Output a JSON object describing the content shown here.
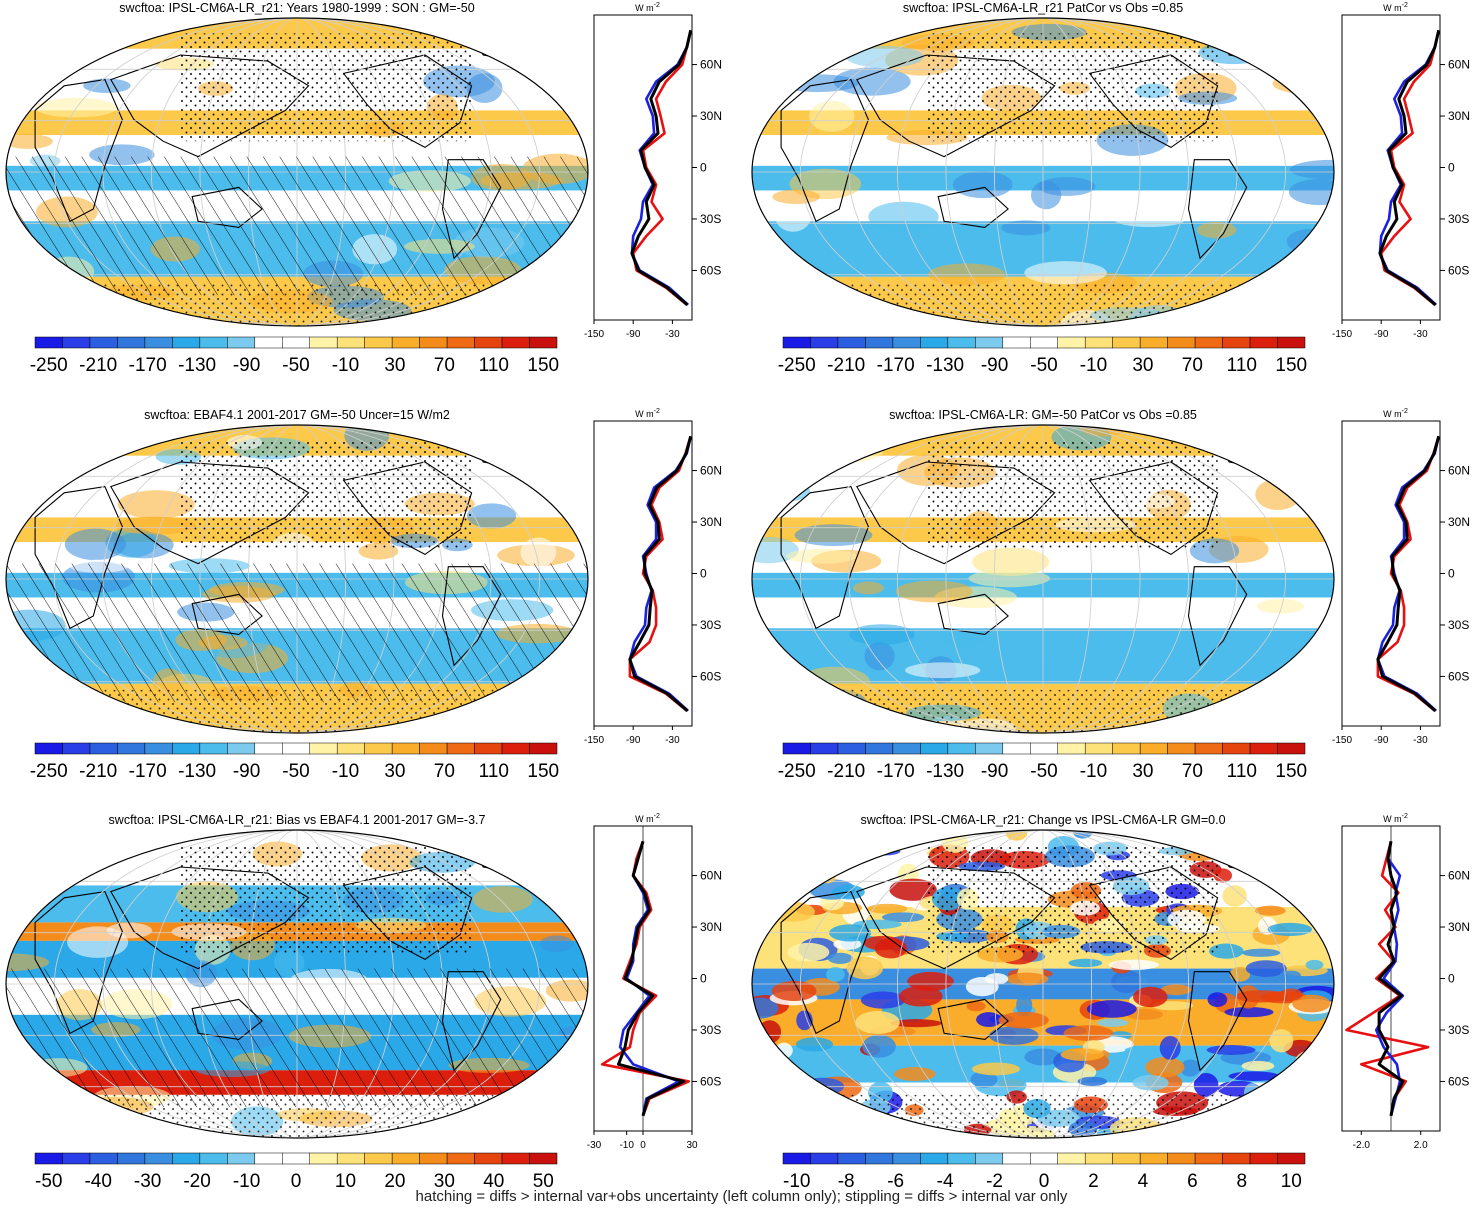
{
  "palettes": {
    "wide": [
      "#1a1ae6",
      "#2a3ee8",
      "#2b5ee0",
      "#3076dc",
      "#3a8ee0",
      "#2aa8e8",
      "#4bbcec",
      "#7ccbee",
      "#ffffff",
      "#ffffff",
      "#fff3a8",
      "#fde27a",
      "#fcc94a",
      "#f9ad2a",
      "#f48c1c",
      "#ee6a14",
      "#e6440f",
      "#dc1f0c",
      "#c8100c"
    ],
    "bias": [
      "#1a1ae6",
      "#2a3ee8",
      "#2b5ee0",
      "#3076dc",
      "#3a8ee0",
      "#2aa8e8",
      "#4bbcec",
      "#7ccbee",
      "#ffffff",
      "#ffffff",
      "#fff3a8",
      "#fde27a",
      "#fcc94a",
      "#f9ad2a",
      "#f48c1c",
      "#ee6a14",
      "#e6440f",
      "#dc1f0c",
      "#c8100c"
    ],
    "change": [
      "#1a1ae6",
      "#2a3ee8",
      "#2b5ee0",
      "#3076dc",
      "#3a8ee0",
      "#2aa8e8",
      "#4bbcec",
      "#7ccbee",
      "#ffffff",
      "#ffffff",
      "#fff3a8",
      "#fde27a",
      "#fcc94a",
      "#f9ad2a",
      "#f48c1c",
      "#ee6a14",
      "#e6440f",
      "#dc1f0c",
      "#c8100c"
    ]
  },
  "colors": {
    "model": "#e81010",
    "obs": "#1a22e0",
    "mean": "#000000",
    "land": "#000000",
    "grid": "#cfcfcf"
  },
  "colorbars": {
    "wide": [
      "-250",
      "-210",
      "-170",
      "-130",
      "-90",
      "-50",
      "-10",
      "30",
      "70",
      "110",
      "150"
    ],
    "bias": [
      "-50",
      "-40",
      "-30",
      "-20",
      "-10",
      "0",
      "10",
      "20",
      "30",
      "40",
      "50"
    ],
    "change": [
      "-10",
      "-8",
      "-6",
      "-4",
      "-2",
      "0",
      "2",
      "4",
      "6",
      "8",
      "10"
    ]
  },
  "lat_labels": [
    "60N",
    "30N",
    "0",
    "30S",
    "60S"
  ],
  "profile_units": "W m",
  "profile_units_sup": "-2",
  "panels": [
    {
      "id": "p1",
      "title": "swcftoa: IPSL-CM6A-LR_r21: Years 1980-1999 : SON : GM=-50",
      "colorbar": "wide",
      "profile_ticks": [
        "-150",
        "-90",
        "-30"
      ],
      "profile_range": [
        -150,
        0
      ],
      "hatching": true,
      "stippling": true
    },
    {
      "id": "p2",
      "title": "swcftoa: IPSL-CM6A-LR_r21 PatCor vs Obs =0.85",
      "colorbar": "wide",
      "profile_ticks": [
        "-150",
        "-90",
        "-30"
      ],
      "profile_range": [
        -150,
        0
      ],
      "hatching": false,
      "stippling": true
    },
    {
      "id": "p3",
      "title": "swcftoa: EBAF4.1 2001-2017 GM=-50 Uncer=15 W/m2",
      "colorbar": "wide",
      "profile_ticks": [
        "-150",
        "-90",
        "-30"
      ],
      "profile_range": [
        -150,
        0
      ],
      "hatching": true,
      "stippling": true
    },
    {
      "id": "p4",
      "title": "swcftoa: IPSL-CM6A-LR: GM=-50 PatCor vs Obs =0.85",
      "colorbar": "wide",
      "profile_ticks": [
        "-150",
        "-90",
        "-30"
      ],
      "profile_range": [
        -150,
        0
      ],
      "hatching": false,
      "stippling": true
    },
    {
      "id": "p5",
      "title": "swcftoa: IPSL-CM6A-LR_r21: Bias vs EBAF4.1 2001-2017  GM=-3.7",
      "colorbar": "bias",
      "profile_ticks": [
        "-30",
        "-10",
        "0",
        "30"
      ],
      "profile_range": [
        -30,
        30
      ],
      "hatching": true,
      "stippling": true
    },
    {
      "id": "p6",
      "title": "swcftoa: IPSL-CM6A-LR_r21: Change vs IPSL-CM6A-LR GM=0.0",
      "colorbar": "change",
      "profile_ticks": [
        "-2.0",
        "2.0"
      ],
      "profile_range": [
        -3.3,
        3.3
      ],
      "hatching": false,
      "stippling": true
    }
  ],
  "chart_data": {
    "type": "heatmap",
    "description_kind": "global maps of shortwave cloud forcing with zonal-mean profiles",
    "units": "W m-2",
    "latitude_axis": [
      80,
      70,
      60,
      50,
      40,
      30,
      20,
      10,
      0,
      -10,
      -20,
      -30,
      -40,
      -50,
      -60,
      -70,
      -80
    ],
    "profiles": [
      {
        "panel": "p1",
        "series": [
          {
            "name": "model",
            "color": "red",
            "values": [
              -2,
              -8,
              -15,
              -40,
              -55,
              -48,
              -42,
              -75,
              -70,
              -55,
              -62,
              -45,
              -70,
              -90,
              -85,
              -40,
              -8
            ]
          },
          {
            "name": "obs",
            "color": "blue",
            "values": [
              -2,
              -8,
              -22,
              -55,
              -70,
              -60,
              -58,
              -80,
              -72,
              -60,
              -75,
              -78,
              -90,
              -92,
              -80,
              -35,
              -6
            ]
          },
          {
            "name": "mean",
            "color": "black",
            "values": [
              -2,
              -8,
              -20,
              -50,
              -63,
              -55,
              -52,
              -78,
              -72,
              -58,
              -70,
              -66,
              -82,
              -92,
              -82,
              -38,
              -7
            ]
          }
        ]
      },
      {
        "panel": "p2",
        "series": [
          {
            "name": "model",
            "color": "red",
            "values": [
              -2,
              -8,
              -15,
              -40,
              -55,
              -48,
              -42,
              -75,
              -70,
              -55,
              -62,
              -45,
              -70,
              -90,
              -85,
              -40,
              -8
            ]
          },
          {
            "name": "obs",
            "color": "blue",
            "values": [
              -2,
              -8,
              -22,
              -55,
              -70,
              -60,
              -58,
              -80,
              -72,
              -60,
              -75,
              -78,
              -90,
              -92,
              -80,
              -35,
              -6
            ]
          },
          {
            "name": "mean",
            "color": "black",
            "values": [
              -2,
              -8,
              -20,
              -50,
              -63,
              -55,
              -52,
              -78,
              -72,
              -58,
              -70,
              -66,
              -82,
              -92,
              -82,
              -38,
              -7
            ]
          }
        ]
      },
      {
        "panel": "p3",
        "series": [
          {
            "name": "model",
            "color": "red",
            "values": [
              -2,
              -10,
              -20,
              -50,
              -62,
              -50,
              -45,
              -70,
              -75,
              -60,
              -55,
              -55,
              -65,
              -95,
              -95,
              -40,
              -8
            ]
          },
          {
            "name": "obs",
            "color": "blue",
            "values": [
              -2,
              -8,
              -25,
              -58,
              -68,
              -55,
              -55,
              -75,
              -70,
              -62,
              -70,
              -72,
              -88,
              -95,
              -85,
              -35,
              -6
            ]
          },
          {
            "name": "mean",
            "color": "black",
            "values": [
              -2,
              -9,
              -23,
              -54,
              -65,
              -52,
              -50,
              -73,
              -72,
              -61,
              -64,
              -66,
              -80,
              -95,
              -88,
              -38,
              -7
            ]
          }
        ]
      },
      {
        "panel": "p4",
        "series": [
          {
            "name": "model",
            "color": "red",
            "values": [
              -2,
              -10,
              -20,
              -50,
              -62,
              -50,
              -45,
              -70,
              -75,
              -60,
              -55,
              -55,
              -65,
              -95,
              -95,
              -40,
              -8
            ]
          },
          {
            "name": "obs",
            "color": "blue",
            "values": [
              -2,
              -8,
              -25,
              -58,
              -68,
              -55,
              -55,
              -75,
              -70,
              -62,
              -70,
              -72,
              -88,
              -95,
              -85,
              -35,
              -6
            ]
          },
          {
            "name": "mean",
            "color": "black",
            "values": [
              -2,
              -9,
              -23,
              -54,
              -65,
              -52,
              -50,
              -73,
              -72,
              -61,
              -64,
              -66,
              -80,
              -95,
              -88,
              -38,
              -7
            ]
          }
        ]
      },
      {
        "panel": "p5",
        "series": [
          {
            "name": "model",
            "color": "red",
            "values": [
              0,
              -4,
              -6,
              2,
              5,
              -2,
              -4,
              -8,
              -12,
              8,
              -2,
              -6,
              -8,
              -25,
              28,
              4,
              0
            ]
          },
          {
            "name": "obs",
            "color": "blue",
            "values": [
              0,
              -3,
              -6,
              0,
              3,
              -4,
              -6,
              -6,
              -10,
              4,
              -4,
              -12,
              -14,
              -6,
              22,
              2,
              0
            ]
          },
          {
            "name": "mean",
            "color": "black",
            "values": [
              0,
              -3,
              -6,
              1,
              4,
              -3,
              -5,
              -7,
              -11,
              6,
              -3,
              -9,
              -11,
              -15,
              25,
              3,
              0
            ]
          }
        ]
      },
      {
        "panel": "p6",
        "series": [
          {
            "name": "model",
            "color": "red",
            "values": [
              0,
              -0.3,
              -0.6,
              0.5,
              -0.4,
              0.3,
              -0.8,
              0.2,
              -1.0,
              0.6,
              -1.2,
              -3.0,
              2.5,
              -2.0,
              1.0,
              0.2,
              0
            ]
          },
          {
            "name": "obs",
            "color": "blue",
            "values": [
              0,
              -0.2,
              0.6,
              0.3,
              0.5,
              0.2,
              0.4,
              0.3,
              -0.5,
              0.8,
              -0.3,
              -1.0,
              -0.5,
              0.4,
              0.6,
              0.3,
              0
            ]
          },
          {
            "name": "mean",
            "color": "black",
            "values": [
              0,
              -0.2,
              0.0,
              0.4,
              0.0,
              0.2,
              -0.2,
              0.2,
              -0.8,
              0.7,
              -0.8,
              -0.8,
              -0.2,
              -0.8,
              0.8,
              0.2,
              0
            ]
          }
        ]
      }
    ]
  },
  "footnote": "hatching = diffs > internal var+obs uncertainty (left column only); stippling = diffs > internal var only"
}
